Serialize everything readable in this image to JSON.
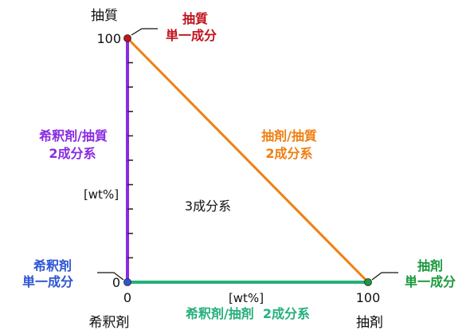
{
  "diagram": {
    "axis_title_vertical": "抽質",
    "axis_title_horizontal_left": "希釈剤",
    "axis_title_horizontal_right": "抽剤",
    "tick_top": "100",
    "tick_origin_y": "0",
    "tick_origin_x": "0",
    "tick_right": "100",
    "unit_vertical": "[wt%]",
    "unit_horizontal": "[wt%]",
    "center_label": "3成分系",
    "callout_solute": [
      "抽質",
      "単一成分"
    ],
    "callout_diluent": [
      "希釈剤",
      "単一成分"
    ],
    "callout_extractant": [
      "抽剤",
      "単一成分"
    ],
    "label_diluent_solute": [
      "希釈剤/抽質",
      "2成分系"
    ],
    "label_extractant_solute": [
      "抽剤/抽質",
      "2成分系"
    ],
    "label_diluent_extractant": "希釈剤/抽剤  2成分系"
  },
  "colors": {
    "solute": "#c0141c",
    "diluent": "#2f55d4",
    "extractant": "#1a9a3c",
    "diluent_solute_edge": "#8a2be2",
    "extractant_solute_edge": "#f07f12",
    "diluent_extractant_edge": "#25b07a",
    "text": "#111111"
  }
}
